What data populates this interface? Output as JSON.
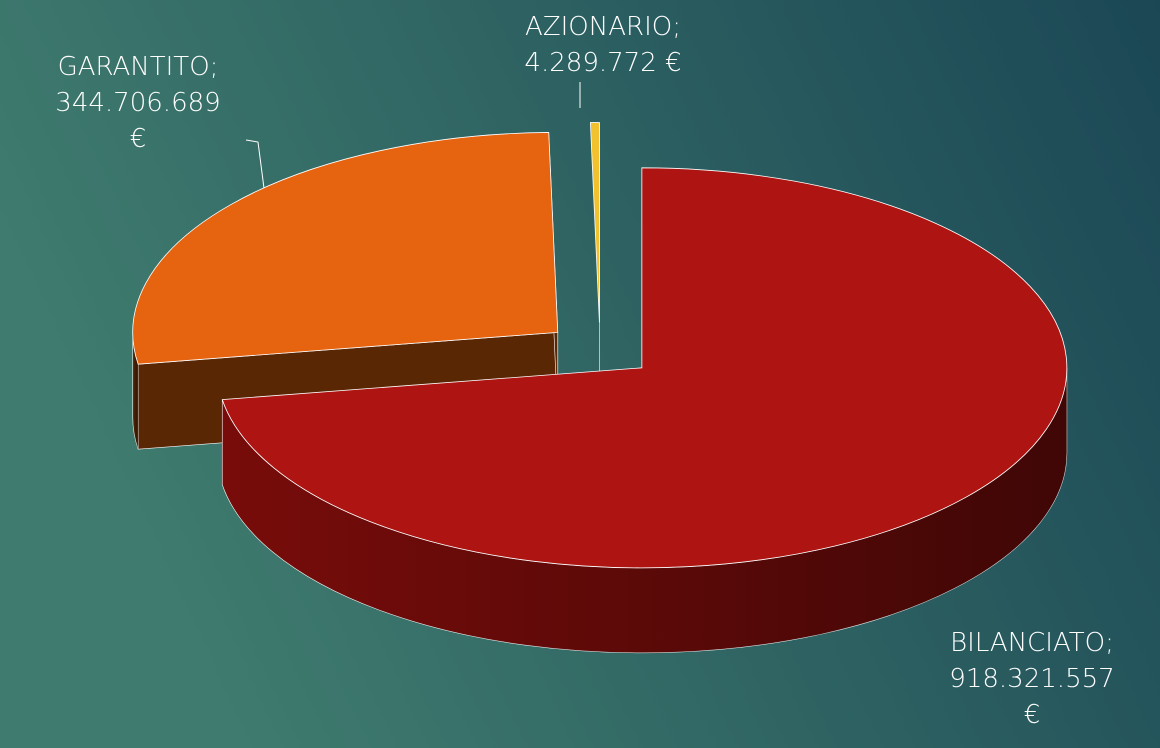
{
  "chart_data": {
    "type": "pie",
    "three_d": true,
    "categories": [
      "BILANCIATO;",
      "GARANTITO;",
      "AZIONARIO;"
    ],
    "values": [
      918321557,
      344706689,
      4289772
    ],
    "value_labels": [
      "918.321.557 €",
      "344.706.689 €",
      "4.289.772 €"
    ],
    "colors": [
      "#ae1512",
      "#e6630f",
      "#f2c12e"
    ],
    "side_colors": [
      "#7e0d0b",
      "#5a2705",
      "#a47d10"
    ]
  }
}
